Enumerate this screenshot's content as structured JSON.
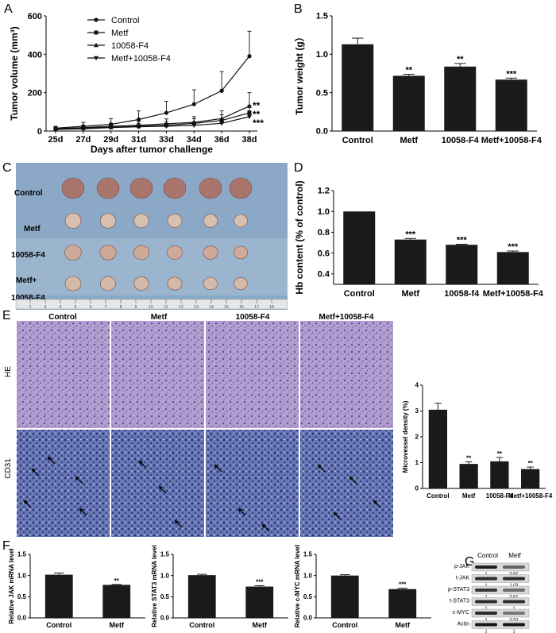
{
  "panels": {
    "A": "A",
    "B": "B",
    "C": "C",
    "D": "D",
    "E": "E",
    "F": "F",
    "G": "G"
  },
  "colors": {
    "bar": "#1a1a1a",
    "line": "#111111",
    "photo_bg": "#8ba9c6",
    "he_stain": "#a690c6",
    "cd31_stain": "#4a5c9c"
  },
  "chart_data": [
    {
      "id": "A",
      "type": "line",
      "xlabel": "Days after tumor challenge",
      "ylabel": "Tumor volume (mm³)",
      "ylim": [
        0,
        600
      ],
      "yticks": [
        "0",
        "200",
        "400",
        "600"
      ],
      "categories": [
        "25d",
        "27d",
        "29d",
        "31d",
        "33d",
        "34d",
        "36d",
        "38d"
      ],
      "legend_position": "top-left",
      "series": [
        {
          "name": "Control",
          "marker": "circle",
          "values": [
            15,
            25,
            35,
            60,
            95,
            140,
            210,
            390
          ],
          "errors": [
            10,
            20,
            30,
            45,
            60,
            75,
            100,
            130
          ],
          "annotation": ""
        },
        {
          "name": "Metf",
          "marker": "square",
          "values": [
            10,
            15,
            20,
            25,
            30,
            40,
            55,
            95
          ],
          "errors": [
            8,
            10,
            12,
            15,
            20,
            25,
            30,
            40
          ],
          "annotation": "**"
        },
        {
          "name": "10058-F4",
          "marker": "triangle",
          "values": [
            12,
            18,
            25,
            30,
            38,
            45,
            65,
            130
          ],
          "errors": [
            8,
            12,
            15,
            20,
            25,
            30,
            40,
            70
          ],
          "annotation": "**"
        },
        {
          "name": "Metf+10058-F4",
          "marker": "inverted-triangle",
          "values": [
            8,
            12,
            18,
            22,
            25,
            30,
            40,
            75
          ],
          "errors": [
            6,
            8,
            10,
            12,
            15,
            18,
            22,
            30
          ],
          "annotation": "***"
        }
      ]
    },
    {
      "id": "B",
      "type": "bar",
      "ylabel": "Tumor weight (g）",
      "ylim": [
        0,
        1.5
      ],
      "yticks": [
        "0.0",
        "0.5",
        "1.0",
        "1.5"
      ],
      "categories": [
        "Control",
        "Metf",
        "10058-F4",
        "Metf+10058-F4"
      ],
      "values": [
        1.13,
        0.72,
        0.84,
        0.67
      ],
      "errors": [
        0.08,
        0.02,
        0.04,
        0.02
      ],
      "annotations": [
        "",
        "**",
        "**",
        "***"
      ]
    },
    {
      "id": "D",
      "type": "bar",
      "ylabel": "Hb content (% of control)",
      "ylim": [
        0.3,
        1.2
      ],
      "yticks": [
        "0.4",
        "0.6",
        "0.8",
        "1.0",
        "1.2"
      ],
      "categories": [
        "Control",
        "Metf",
        "10058-f4",
        "Metf+10058-F4"
      ],
      "values": [
        1.0,
        0.73,
        0.68,
        0.61
      ],
      "errors": [
        0.0,
        0.01,
        0.005,
        0.01
      ],
      "annotations": [
        "",
        "***",
        "***",
        "***"
      ]
    },
    {
      "id": "E",
      "type": "bar",
      "ylabel": "Microvessel density (%)",
      "ylim": [
        0,
        4
      ],
      "yticks": [
        "0",
        "1",
        "2",
        "3",
        "4"
      ],
      "categories": [
        "Control",
        "Metf",
        "10058-F4",
        "Metf+10058-F4"
      ],
      "values": [
        3.05,
        0.95,
        1.05,
        0.75
      ],
      "errors": [
        0.25,
        0.08,
        0.15,
        0.08
      ],
      "annotations": [
        "",
        "**",
        "**",
        "**"
      ]
    },
    {
      "id": "F1",
      "type": "bar",
      "ylabel": "Relative JAK mRNA level",
      "ylim": [
        0,
        1.5
      ],
      "yticks": [
        "0.0",
        "0.5",
        "1.0",
        "1.5"
      ],
      "categories": [
        "Control",
        "Metf"
      ],
      "values": [
        1.02,
        0.78
      ],
      "errors": [
        0.04,
        0.01
      ],
      "annotations": [
        "",
        "**"
      ]
    },
    {
      "id": "F2",
      "type": "bar",
      "ylabel": "Relative STAT3 mRNA level",
      "ylim": [
        0,
        1.5
      ],
      "yticks": [
        "0.0",
        "0.5",
        "1.0",
        "1.5"
      ],
      "categories": [
        "Control",
        "Metf"
      ],
      "values": [
        1.01,
        0.74
      ],
      "errors": [
        0.02,
        0.02
      ],
      "annotations": [
        "",
        "***"
      ]
    },
    {
      "id": "F3",
      "type": "bar",
      "ylabel": "Relative c-MYC mRNA level",
      "ylim": [
        0,
        1.5
      ],
      "yticks": [
        "0.0",
        "0.5",
        "1.0",
        "1.5"
      ],
      "categories": [
        "Control",
        "Metf"
      ],
      "values": [
        1.0,
        0.68
      ],
      "errors": [
        0.02,
        0.02
      ],
      "annotations": [
        "",
        "***"
      ]
    }
  ],
  "panel_c": {
    "row_labels": [
      "Control",
      "Metf",
      "10058-F4",
      "Metf+",
      "10058-F4"
    ],
    "ruler_numbers": [
      "2",
      "3",
      "4",
      "5",
      "6",
      "7",
      "8",
      "9",
      "10",
      "11",
      "12",
      "13",
      "14",
      "15",
      "16",
      "17",
      "18"
    ]
  },
  "panel_e": {
    "column_labels": [
      "Control",
      "Metf",
      "10058-F4",
      "Metf+10058-F4"
    ],
    "row_labels": [
      "HE",
      "CD31"
    ]
  },
  "panel_g": {
    "column_labels": [
      "Control",
      "Metf"
    ],
    "proteins": [
      {
        "name": "p-JAK",
        "control": "1",
        "metf": "0.62"
      },
      {
        "name": "t-JAK",
        "control": "1",
        "metf": "1.03"
      },
      {
        "name": "p-STAT3",
        "control": "1",
        "metf": "0.67"
      },
      {
        "name": "t-STAT3",
        "control": "1",
        "metf": "1"
      },
      {
        "name": "c-MYC",
        "control": "1",
        "metf": "0.53"
      },
      {
        "name": "Actin",
        "control": "1",
        "metf": "1"
      }
    ]
  }
}
